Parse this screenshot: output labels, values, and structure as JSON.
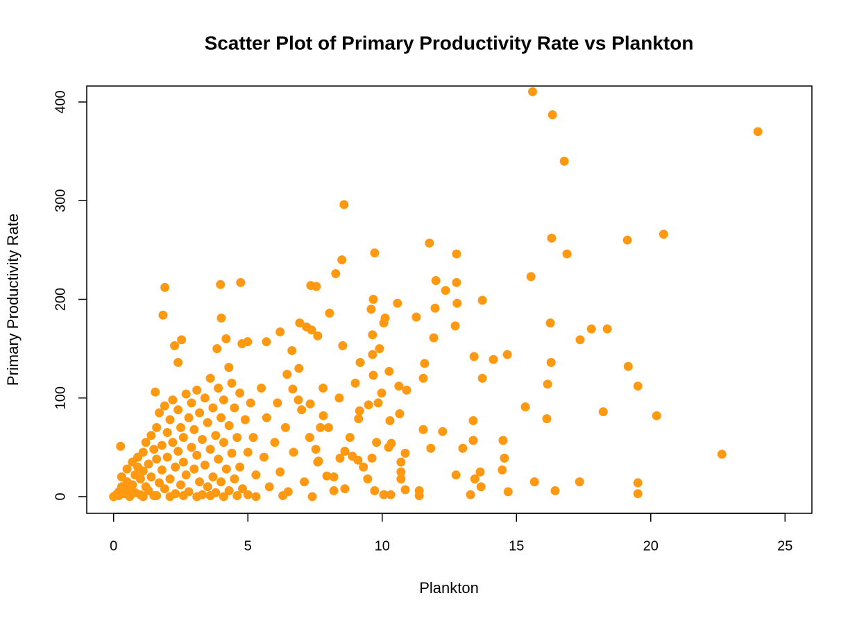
{
  "chart_data": {
    "type": "scatter",
    "title": "Scatter Plot of Primary Productivity Rate vs Plankton",
    "x_label": "Plankton",
    "y_label": "Primary Productivity Rate",
    "color": "#ff9912",
    "xlim": [
      -1.0,
      26.0
    ],
    "ylim": [
      -16.9,
      416.2
    ],
    "xticks": [
      0,
      5,
      10,
      15,
      20,
      25
    ],
    "yticks": [
      0,
      100,
      200,
      300,
      400
    ],
    "x": [
      15.6,
      16.34,
      16.78,
      23.99,
      8.58,
      11.76,
      12.77,
      9.72,
      16.31,
      16.88,
      19.13,
      20.48,
      15.54,
      8.5,
      8.27,
      12.0,
      12.77,
      12.36,
      7.34,
      7.55,
      4.73,
      3.98,
      1.91,
      1.84,
      9.67,
      13.73,
      10.57,
      12.79,
      11.97,
      9.59,
      8.04,
      10.11,
      10.06,
      11.27,
      12.72,
      16.26,
      17.79,
      18.38,
      17.37,
      11.92,
      14.66,
      14.14,
      13.42,
      11.58,
      11.53,
      13.73,
      16.29,
      19.16,
      19.52,
      16.16,
      15.33,
      18.23,
      20.22,
      16.13,
      13.39,
      12.25,
      11.53,
      22.65,
      13.39,
      14.5,
      14.55,
      13.0,
      11.81,
      12.75,
      13.45,
      13.65,
      13.68,
      14.47,
      14.69,
      15.67,
      17.35,
      16.44,
      19.52,
      19.52,
      13.29,
      11.38,
      11.38,
      10.86,
      10.86,
      10.7,
      10.7,
      10.7,
      10.65,
      10.91,
      10.62,
      10.26,
      10.29,
      9.9,
      9.64,
      9.64,
      9.18,
      9.67,
      9.98,
      9.85,
      9.49,
      9.16,
      9.12,
      8.53,
      7.18,
      7.37,
      7.6,
      6.93,
      6.2,
      5.69,
      4.99,
      4.78,
      2.53,
      2.27,
      2.4,
      1.55,
      0.26,
      4.01,
      3.85,
      4.19,
      4.29,
      9.79,
      10.24,
      10.34,
      9.62,
      9.72,
      10.06,
      10.32,
      9.46,
      9.1,
      8.89,
      8.61,
      8.43,
      8.2,
      8.61,
      7.94,
      7.63,
      7.53,
      7.7,
      7.81,
      7.32,
      6.88,
      6.67,
      6.46,
      6.64,
      0,
      0.1,
      0.2,
      0.3,
      0.3,
      0.4,
      0.5,
      0.5,
      0.6,
      0.7,
      0.7,
      0.8,
      0.8,
      0.9,
      0.9,
      1.0,
      1.0,
      1.1,
      1.1,
      1.2,
      1.2,
      1.3,
      1.3,
      1.4,
      1.4,
      1.5,
      1.5,
      1.6,
      1.6,
      1.7,
      1.7,
      1.8,
      1.8,
      1.9,
      1.9,
      2.0,
      2.0,
      2.1,
      2.1,
      2.2,
      2.2,
      2.3,
      2.3,
      2.4,
      2.4,
      2.5,
      2.5,
      2.6,
      2.6,
      2.7,
      2.7,
      2.8,
      2.8,
      2.9,
      2.9,
      3.0,
      3.0,
      3.1,
      3.1,
      3.2,
      3.2,
      3.3,
      3.3,
      3.4,
      3.4,
      3.5,
      3.5,
      3.6,
      3.6,
      3.7,
      3.7,
      3.8,
      3.8,
      3.9,
      3.9,
      4.0,
      4.0,
      4.1,
      4.1,
      4.2,
      4.3,
      4.3,
      4.4,
      4.4,
      4.5,
      4.5,
      4.6,
      4.7,
      4.7,
      4.8,
      4.9,
      5.0,
      5.0,
      5.1,
      5.2,
      5.3,
      5.5,
      5.6,
      5.7,
      5.8,
      6.0,
      6.1,
      6.2,
      6.4,
      6.5,
      6.7,
      6.9,
      7.0,
      7.1,
      7.3,
      7.6,
      7.8,
      8.0,
      8.2,
      8.4,
      8.8,
      9.0,
      9.3,
      0.2,
      0.6,
      1.1,
      1.6,
      2.1,
      2.6,
      3.1,
      3.6,
      4.1,
      4.6,
      5.3,
      6.3,
      7.4
    ],
    "y": [
      410.5,
      387,
      340,
      370,
      296,
      257,
      246,
      247,
      262,
      246,
      260,
      266,
      223,
      240,
      226,
      219,
      217,
      209,
      214,
      213,
      217,
      215,
      212,
      184,
      200,
      199,
      196,
      196,
      191,
      190,
      186,
      181,
      176,
      182,
      173,
      176,
      170,
      170,
      159,
      161,
      144,
      139,
      142,
      135,
      120,
      120,
      136,
      132,
      112,
      114,
      91,
      86,
      82,
      79,
      77,
      66,
      68,
      43,
      57,
      57,
      39,
      49,
      49,
      22,
      18,
      25,
      10,
      27,
      5,
      15,
      15,
      6,
      14,
      3,
      2,
      6,
      1,
      7,
      44,
      35,
      18,
      25,
      84,
      108,
      112,
      127,
      77,
      150,
      164,
      144,
      136,
      123,
      105,
      95,
      93,
      87,
      79,
      153,
      172,
      169,
      163,
      176,
      167,
      157,
      157,
      155,
      159,
      153,
      136,
      106,
      51,
      181,
      150,
      160,
      131,
      55,
      50,
      54,
      39,
      6,
      2,
      2,
      18,
      37,
      41,
      46,
      39,
      6,
      8,
      21,
      36,
      48,
      70,
      82,
      94,
      98,
      109,
      124,
      148,
      0,
      2,
      5,
      10,
      20,
      3,
      15,
      28,
      8,
      35,
      12,
      22,
      4,
      40,
      30,
      18,
      2,
      45,
      26,
      10,
      55,
      33,
      6,
      62,
      20,
      48,
      1,
      70,
      38,
      14,
      85,
      52,
      27,
      92,
      8,
      65,
      40,
      78,
      18,
      98,
      55,
      30,
      3,
      88,
      46,
      70,
      12,
      60,
      35,
      104,
      22,
      80,
      5,
      50,
      95,
      68,
      28,
      108,
      42,
      15,
      85,
      58,
      2,
      100,
      32,
      75,
      10,
      120,
      48,
      90,
      20,
      62,
      4,
      110,
      38,
      80,
      15,
      98,
      55,
      28,
      72,
      6,
      115,
      44,
      90,
      18,
      60,
      105,
      30,
      8,
      78,
      45,
      2,
      95,
      60,
      22,
      110,
      40,
      80,
      10,
      55,
      95,
      25,
      70,
      5,
      45,
      130,
      88,
      15,
      60,
      35,
      110,
      70,
      20,
      100,
      60,
      115,
      30,
      1,
      0,
      0,
      1,
      0,
      1,
      0,
      1,
      0,
      1,
      0,
      1,
      0
    ]
  }
}
